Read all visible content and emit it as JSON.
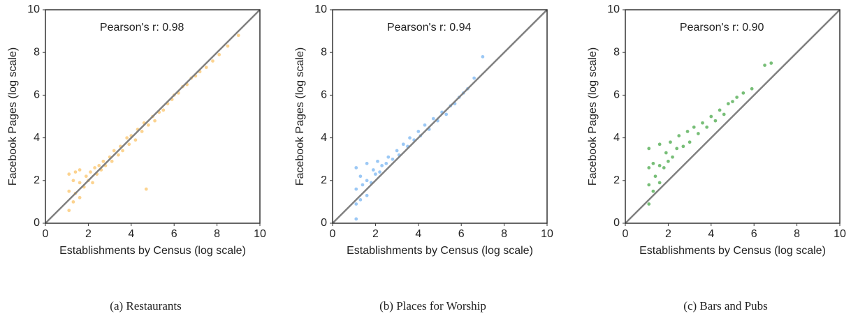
{
  "chart_data": [
    {
      "type": "scatter",
      "title": "Pearson's r: 0.98",
      "caption": "(a) Restaurants",
      "xlabel": "Establishments by Census (log scale)",
      "ylabel": "Facebook Pages (log scale)",
      "xlim": [
        0,
        10
      ],
      "ylim": [
        0,
        10
      ],
      "xticks": [
        0,
        2,
        4,
        6,
        8,
        10
      ],
      "yticks": [
        0,
        2,
        4,
        6,
        8,
        10
      ],
      "color": "#fbc469",
      "x": [
        1.1,
        1.1,
        1.1,
        1.3,
        1.3,
        1.4,
        1.4,
        1.6,
        1.6,
        1.6,
        1.8,
        1.9,
        2.0,
        2.1,
        2.2,
        2.3,
        2.4,
        2.5,
        2.6,
        2.7,
        2.8,
        3.0,
        3.1,
        3.2,
        3.4,
        3.5,
        3.6,
        3.8,
        3.9,
        4.0,
        4.2,
        4.3,
        4.5,
        4.6,
        4.8,
        5.0,
        5.1,
        5.3,
        5.5,
        5.7,
        5.9,
        6.0,
        6.2,
        6.4,
        6.6,
        6.8,
        7.0,
        7.2,
        7.5,
        7.8,
        8.1,
        8.5,
        9.0,
        4.7
      ],
      "y": [
        0.6,
        1.5,
        2.3,
        1.0,
        2.0,
        1.4,
        2.4,
        1.2,
        1.9,
        2.5,
        1.7,
        2.2,
        2.0,
        2.4,
        1.9,
        2.6,
        2.3,
        2.7,
        2.5,
        2.9,
        2.7,
        3.1,
        2.9,
        3.4,
        3.2,
        3.6,
        3.4,
        4.0,
        3.7,
        4.1,
        3.9,
        4.4,
        4.3,
        4.7,
        4.6,
        5.0,
        4.8,
        5.2,
        5.3,
        5.6,
        5.8,
        6.0,
        6.1,
        6.4,
        6.5,
        6.8,
        6.9,
        7.1,
        7.3,
        7.6,
        7.9,
        8.3,
        8.8,
        1.6
      ]
    },
    {
      "type": "scatter",
      "title": "Pearson's r: 0.94",
      "caption": "(b) Places for Worship",
      "xlabel": "Establishments by Census (log scale)",
      "ylabel": "Facebook Pages (log scale)",
      "xlim": [
        0,
        10
      ],
      "ylim": [
        0,
        10
      ],
      "xticks": [
        0,
        2,
        4,
        6,
        8,
        10
      ],
      "yticks": [
        0,
        2,
        4,
        6,
        8,
        10
      ],
      "color": "#7ab6f2",
      "x": [
        1.1,
        1.1,
        1.1,
        1.1,
        1.3,
        1.3,
        1.4,
        1.6,
        1.6,
        1.6,
        1.8,
        1.9,
        2.0,
        2.1,
        2.2,
        2.3,
        2.5,
        2.6,
        2.8,
        3.0,
        3.1,
        3.3,
        3.5,
        3.6,
        3.8,
        4.0,
        4.1,
        4.3,
        4.5,
        4.7,
        4.9,
        5.1,
        5.3,
        5.5,
        5.7,
        5.9,
        6.1,
        6.3,
        6.6,
        7.0
      ],
      "y": [
        0.2,
        0.9,
        1.6,
        2.6,
        1.1,
        2.2,
        1.8,
        1.3,
        2.0,
        2.8,
        1.9,
        2.5,
        2.3,
        2.9,
        2.4,
        2.7,
        2.8,
        3.1,
        3.0,
        3.4,
        3.2,
        3.7,
        3.6,
        4.0,
        3.9,
        4.3,
        4.1,
        4.6,
        4.4,
        4.9,
        4.8,
        5.2,
        5.1,
        5.5,
        5.6,
        5.9,
        6.1,
        6.3,
        6.8,
        7.8
      ]
    },
    {
      "type": "scatter",
      "title": "Pearson's r: 0.90",
      "caption": "(c) Bars and Pubs",
      "xlabel": "Establishments by Census (log scale)",
      "ylabel": "Facebook Pages (log scale)",
      "xlim": [
        0,
        10
      ],
      "ylim": [
        0,
        10
      ],
      "xticks": [
        0,
        2,
        4,
        6,
        8,
        10
      ],
      "yticks": [
        0,
        2,
        4,
        6,
        8,
        10
      ],
      "color": "#4aa84a",
      "x": [
        1.1,
        1.1,
        1.1,
        1.1,
        1.3,
        1.3,
        1.4,
        1.6,
        1.6,
        1.6,
        1.8,
        1.9,
        2.0,
        2.1,
        2.2,
        2.4,
        2.5,
        2.7,
        2.9,
        3.0,
        3.2,
        3.4,
        3.6,
        3.8,
        4.0,
        4.2,
        4.4,
        4.6,
        4.8,
        5.0,
        5.2,
        5.5,
        5.9,
        6.5,
        6.8
      ],
      "y": [
        0.9,
        1.8,
        2.6,
        3.5,
        1.5,
        2.8,
        2.2,
        1.9,
        2.7,
        3.7,
        2.6,
        3.3,
        2.9,
        3.8,
        3.1,
        3.5,
        4.1,
        3.6,
        4.3,
        3.8,
        4.5,
        4.2,
        4.7,
        4.5,
        5.0,
        4.8,
        5.3,
        5.1,
        5.6,
        5.7,
        5.9,
        6.1,
        6.3,
        7.4,
        7.5
      ]
    }
  ]
}
